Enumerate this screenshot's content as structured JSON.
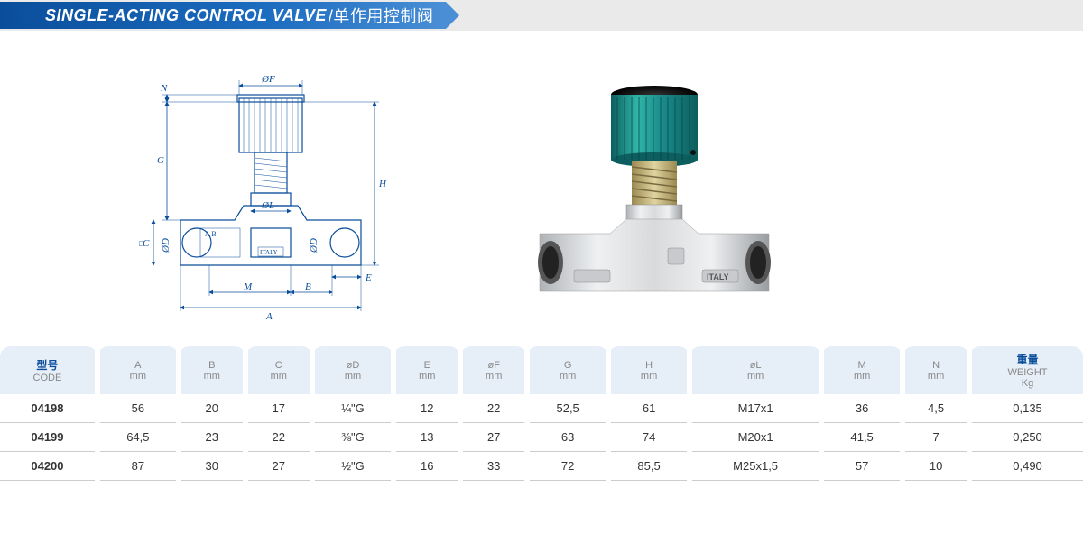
{
  "header": {
    "title_en": "SINGLE-ACTING CONTROL VALVE",
    "title_cn": "/单作用控制阀"
  },
  "diagram": {
    "labels": {
      "A": "A",
      "B": "B",
      "C": "C",
      "D": "ØD",
      "E": "E",
      "F": "ØF",
      "G": "G",
      "H": "H",
      "L": "ØL",
      "M": "M",
      "N": "N"
    },
    "body_label_ab": "A   B",
    "body_label_italy": "ITALY",
    "colors": {
      "line": "#0a4e9b",
      "bg": "#ffffff"
    }
  },
  "photo": {
    "knob_color": "#1a8a8a",
    "knob_highlight": "#2fb5a8",
    "knob_top": "#111111",
    "body_color": "#d8dadc",
    "body_shadow": "#b0b3b6",
    "thread_color": "#c8b878",
    "label_italy": "ITALY"
  },
  "table": {
    "columns": [
      {
        "cn": "型号",
        "label": "CODE",
        "unit": ""
      },
      {
        "cn": "",
        "label": "A",
        "unit": "mm"
      },
      {
        "cn": "",
        "label": "B",
        "unit": "mm"
      },
      {
        "cn": "",
        "label": "C",
        "unit": "mm"
      },
      {
        "cn": "",
        "label": "øD",
        "unit": "mm"
      },
      {
        "cn": "",
        "label": "E",
        "unit": "mm"
      },
      {
        "cn": "",
        "label": "øF",
        "unit": "mm"
      },
      {
        "cn": "",
        "label": "G",
        "unit": "mm"
      },
      {
        "cn": "",
        "label": "H",
        "unit": "mm"
      },
      {
        "cn": "",
        "label": "øL",
        "unit": "mm"
      },
      {
        "cn": "",
        "label": "M",
        "unit": "mm"
      },
      {
        "cn": "",
        "label": "N",
        "unit": "mm"
      },
      {
        "cn": "重量",
        "label": "WEIGHT",
        "unit": "Kg"
      }
    ],
    "rows": [
      [
        "04198",
        "56",
        "20",
        "17",
        "¼\"G",
        "12",
        "22",
        "52,5",
        "61",
        "M17x1",
        "36",
        "4,5",
        "0,135"
      ],
      [
        "04199",
        "64,5",
        "23",
        "22",
        "⅜\"G",
        "13",
        "27",
        "63",
        "74",
        "M20x1",
        "41,5",
        "7",
        "0,250"
      ],
      [
        "04200",
        "87",
        "30",
        "27",
        "½\"G",
        "16",
        "33",
        "72",
        "85,5",
        "M25x1,5",
        "57",
        "10",
        "0,490"
      ]
    ],
    "header_bg": "#e6eef8",
    "header_color": "#0a4e9b",
    "row_border": "#cccccc"
  }
}
